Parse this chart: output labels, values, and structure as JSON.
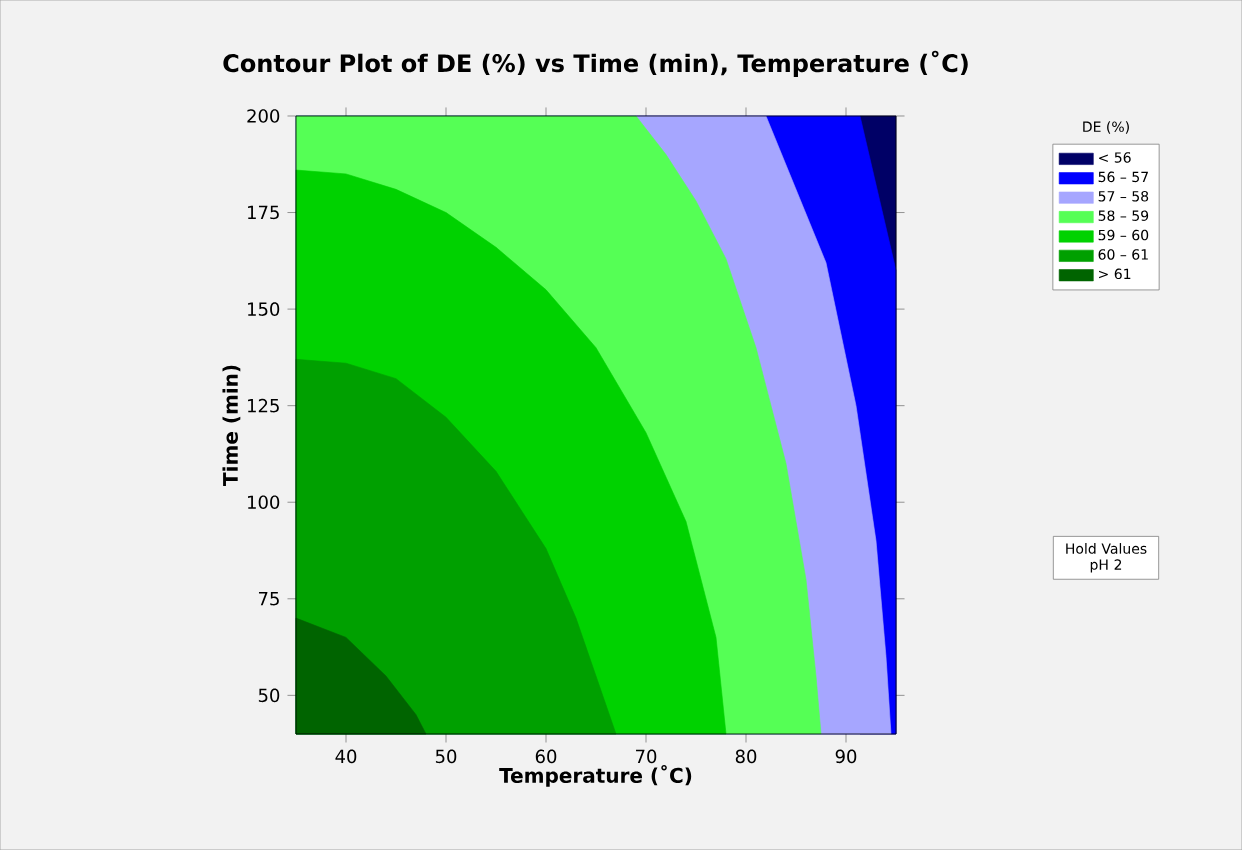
{
  "chart_data": {
    "type": "area",
    "title": "Contour Plot of DE (%) vs Time (min), Temperature (˚C)",
    "xlabel": "Temperature (˚C)",
    "ylabel": "Time (min)",
    "legend_title": "DE (%)",
    "legend": "right",
    "xlim": [
      35,
      95
    ],
    "ylim": [
      40,
      200
    ],
    "xticks": [
      40,
      50,
      60,
      70,
      80,
      90
    ],
    "yticks": [
      50,
      75,
      100,
      125,
      150,
      175,
      200
    ],
    "series": [
      {
        "name": "< 56",
        "color": "#000066",
        "x": [
          91.4,
          95
        ],
        "values": [
          200,
          200
        ]
      },
      {
        "name": "56 – 57",
        "color": "#0000ff",
        "x": [
          35,
          91.4,
          93,
          94,
          95
        ],
        "values": [
          200,
          200,
          null,
          null,
          160
        ]
      },
      {
        "name": "57 – 58",
        "color": "#a6a6ff",
        "x": [
          35,
          82,
          85,
          88,
          91,
          93,
          94,
          94.5
        ],
        "values": [
          200,
          200,
          null,
          162,
          125,
          90,
          60,
          40
        ]
      },
      {
        "name": "58 – 59",
        "color": "#55ff55",
        "x": [
          35,
          69,
          72,
          75,
          78,
          81,
          84,
          86,
          87,
          87.5
        ],
        "values": [
          200,
          200,
          190,
          178,
          163,
          140,
          110,
          80,
          55,
          40
        ]
      },
      {
        "name": "59 – 60",
        "color": "#00d200",
        "x": [
          35,
          40,
          45,
          50,
          55,
          60,
          65,
          70,
          74,
          77,
          78
        ],
        "values": [
          186,
          185,
          181,
          175,
          166,
          155,
          140,
          118,
          95,
          65,
          40
        ]
      },
      {
        "name": "60 – 61",
        "color": "#00a000",
        "x": [
          35,
          40,
          45,
          50,
          55,
          60,
          63,
          65,
          67
        ],
        "values": [
          137,
          136,
          132,
          122,
          108,
          88,
          70,
          55,
          40
        ]
      },
      {
        "name": "> 61",
        "color": "#006400",
        "x": [
          35,
          40,
          44,
          47,
          48
        ],
        "values": [
          70,
          65,
          55,
          45,
          40
        ]
      }
    ],
    "annotations": [
      "Hold Values",
      "pH  2"
    ]
  }
}
